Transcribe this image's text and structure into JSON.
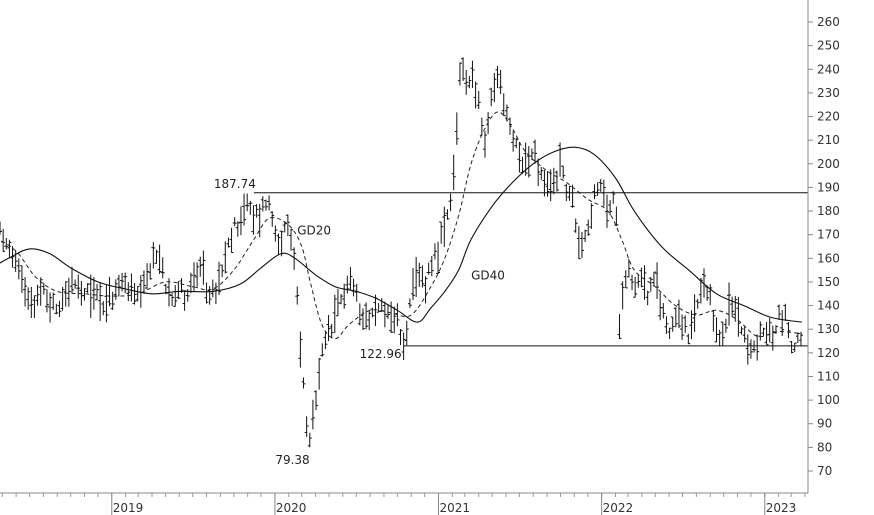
{
  "chart_data": {
    "type": "line",
    "title": "",
    "xlabel": "",
    "ylabel": "",
    "ylim": [
      60,
      265
    ],
    "y_ticks": [
      70,
      80,
      90,
      100,
      110,
      120,
      130,
      140,
      150,
      160,
      170,
      180,
      190,
      200,
      210,
      220,
      230,
      240,
      250,
      260
    ],
    "x_range": [
      "2018-03-01",
      "2023-04-01"
    ],
    "x_ticks": [
      {
        "label": "2019",
        "date": "2019-01-01"
      },
      {
        "label": "2020",
        "date": "2020-01-01"
      },
      {
        "label": "2021",
        "date": "2021-01-01"
      },
      {
        "label": "2022",
        "date": "2022-01-01"
      },
      {
        "label": "2023",
        "date": "2023-01-01"
      }
    ],
    "grid": false,
    "y_axis_side": "right",
    "price_path": [
      [
        "2018-03-01",
        158
      ],
      [
        "2018-03-15",
        168
      ],
      [
        "2018-04-01",
        172
      ],
      [
        "2018-04-15",
        176
      ],
      [
        "2018-05-01",
        170
      ],
      [
        "2018-05-15",
        165
      ],
      [
        "2018-06-01",
        158
      ],
      [
        "2018-06-15",
        150
      ],
      [
        "2018-07-01",
        145
      ],
      [
        "2018-07-15",
        142
      ],
      [
        "2018-08-01",
        146
      ],
      [
        "2018-08-15",
        141
      ],
      [
        "2018-09-01",
        139
      ],
      [
        "2018-09-15",
        144
      ],
      [
        "2018-10-01",
        150
      ],
      [
        "2018-10-15",
        147
      ],
      [
        "2018-11-01",
        143
      ],
      [
        "2018-11-15",
        146
      ],
      [
        "2018-12-01",
        145
      ],
      [
        "2018-12-15",
        141
      ],
      [
        "2019-01-01",
        143
      ],
      [
        "2019-01-15",
        147
      ],
      [
        "2019-02-01",
        150
      ],
      [
        "2019-02-15",
        145
      ],
      [
        "2019-03-01",
        142
      ],
      [
        "2019-03-15",
        146
      ],
      [
        "2019-04-01",
        159
      ],
      [
        "2019-04-15",
        161
      ],
      [
        "2019-05-01",
        150
      ],
      [
        "2019-05-15",
        146
      ],
      [
        "2019-06-01",
        148
      ],
      [
        "2019-06-15",
        144
      ],
      [
        "2019-07-01",
        150
      ],
      [
        "2019-07-15",
        155
      ],
      [
        "2019-08-01",
        148
      ],
      [
        "2019-08-15",
        144
      ],
      [
        "2019-09-01",
        150
      ],
      [
        "2019-09-15",
        162
      ],
      [
        "2019-10-01",
        172
      ],
      [
        "2019-10-15",
        178
      ],
      [
        "2019-11-01",
        182
      ],
      [
        "2019-11-15",
        177
      ],
      [
        "2019-12-01",
        180
      ],
      [
        "2019-12-15",
        186
      ],
      [
        "2020-01-01",
        172
      ],
      [
        "2020-01-15",
        168
      ],
      [
        "2020-02-01",
        172
      ],
      [
        "2020-02-15",
        158
      ],
      [
        "2020-03-01",
        115
      ],
      [
        "2020-03-10",
        95
      ],
      [
        "2020-03-18",
        79.38
      ],
      [
        "2020-04-01",
        98
      ],
      [
        "2020-04-15",
        118
      ],
      [
        "2020-05-01",
        128
      ],
      [
        "2020-05-15",
        134
      ],
      [
        "2020-06-01",
        145
      ],
      [
        "2020-06-15",
        152
      ],
      [
        "2020-07-01",
        144
      ],
      [
        "2020-07-15",
        138
      ],
      [
        "2020-08-01",
        135
      ],
      [
        "2020-08-15",
        138
      ],
      [
        "2020-09-01",
        140
      ],
      [
        "2020-09-15",
        136
      ],
      [
        "2020-10-01",
        133
      ],
      [
        "2020-10-15",
        122.96
      ],
      [
        "2020-11-01",
        142
      ],
      [
        "2020-11-15",
        152
      ],
      [
        "2020-12-01",
        150
      ],
      [
        "2020-12-15",
        158
      ],
      [
        "2021-01-01",
        165
      ],
      [
        "2021-01-15",
        172
      ],
      [
        "2021-02-01",
        185
      ],
      [
        "2021-02-10",
        210
      ],
      [
        "2021-02-20",
        248
      ],
      [
        "2021-03-01",
        232
      ],
      [
        "2021-03-15",
        240
      ],
      [
        "2021-04-01",
        225
      ],
      [
        "2021-04-15",
        205
      ],
      [
        "2021-05-01",
        230
      ],
      [
        "2021-05-15",
        238
      ],
      [
        "2021-06-01",
        222
      ],
      [
        "2021-06-15",
        210
      ],
      [
        "2021-07-01",
        206
      ],
      [
        "2021-07-15",
        200
      ],
      [
        "2021-08-01",
        205
      ],
      [
        "2021-08-15",
        196
      ],
      [
        "2021-09-01",
        188
      ],
      [
        "2021-09-15",
        192
      ],
      [
        "2021-10-01",
        200
      ],
      [
        "2021-10-15",
        190
      ],
      [
        "2021-11-01",
        180
      ],
      [
        "2021-11-15",
        165
      ],
      [
        "2021-12-01",
        174
      ],
      [
        "2021-12-15",
        185
      ],
      [
        "2022-01-01",
        190
      ],
      [
        "2022-01-15",
        180
      ],
      [
        "2022-02-01",
        186
      ],
      [
        "2022-02-10",
        135
      ],
      [
        "2022-02-20",
        150
      ],
      [
        "2022-03-01",
        158
      ],
      [
        "2022-03-15",
        148
      ],
      [
        "2022-04-01",
        153
      ],
      [
        "2022-04-15",
        145
      ],
      [
        "2022-05-01",
        150
      ],
      [
        "2022-05-15",
        140
      ],
      [
        "2022-06-01",
        128
      ],
      [
        "2022-06-15",
        138
      ],
      [
        "2022-07-01",
        132
      ],
      [
        "2022-07-15",
        125
      ],
      [
        "2022-08-01",
        138
      ],
      [
        "2022-08-15",
        148
      ],
      [
        "2022-09-01",
        140
      ],
      [
        "2022-09-15",
        130
      ],
      [
        "2022-10-01",
        127
      ],
      [
        "2022-10-15",
        140
      ],
      [
        "2022-11-01",
        137
      ],
      [
        "2022-11-15",
        130
      ],
      [
        "2022-12-01",
        118
      ],
      [
        "2022-12-15",
        125
      ],
      [
        "2023-01-01",
        130
      ],
      [
        "2023-01-15",
        126
      ],
      [
        "2023-02-01",
        135
      ],
      [
        "2023-02-15",
        138
      ],
      [
        "2023-03-01",
        122
      ],
      [
        "2023-03-15",
        126
      ],
      [
        "2023-03-25",
        124
      ]
    ],
    "series": [
      {
        "name": "GD20",
        "style": "dashed",
        "values": [
          [
            "2018-03-01",
            165
          ],
          [
            "2018-04-15",
            168
          ],
          [
            "2018-06-01",
            163
          ],
          [
            "2018-07-15",
            152
          ],
          [
            "2018-09-01",
            146
          ],
          [
            "2018-11-01",
            145
          ],
          [
            "2019-01-01",
            144
          ],
          [
            "2019-03-01",
            145
          ],
          [
            "2019-05-01",
            150
          ],
          [
            "2019-07-01",
            148
          ],
          [
            "2019-08-15",
            147
          ],
          [
            "2019-10-01",
            155
          ],
          [
            "2019-11-15",
            168
          ],
          [
            "2019-12-20",
            177
          ],
          [
            "2020-02-01",
            174
          ],
          [
            "2020-03-01",
            165
          ],
          [
            "2020-03-20",
            150
          ],
          [
            "2020-04-15",
            132
          ],
          [
            "2020-05-15",
            126
          ],
          [
            "2020-06-15",
            132
          ],
          [
            "2020-08-01",
            138
          ],
          [
            "2020-09-15",
            137
          ],
          [
            "2020-11-01",
            136
          ],
          [
            "2020-12-15",
            148
          ],
          [
            "2021-01-15",
            160
          ],
          [
            "2021-02-15",
            178
          ],
          [
            "2021-03-15",
            200
          ],
          [
            "2021-04-15",
            215
          ],
          [
            "2021-05-15",
            222
          ],
          [
            "2021-06-15",
            215
          ],
          [
            "2021-07-15",
            205
          ],
          [
            "2021-09-01",
            197
          ],
          [
            "2021-10-15",
            192
          ],
          [
            "2021-12-01",
            185
          ],
          [
            "2022-01-15",
            180
          ],
          [
            "2022-02-15",
            168
          ],
          [
            "2022-03-15",
            155
          ],
          [
            "2022-05-01",
            148
          ],
          [
            "2022-06-15",
            140
          ],
          [
            "2022-08-01",
            136
          ],
          [
            "2022-09-15",
            138
          ],
          [
            "2022-11-01",
            134
          ],
          [
            "2022-12-15",
            127
          ],
          [
            "2023-02-01",
            129
          ],
          [
            "2023-03-25",
            128
          ]
        ]
      },
      {
        "name": "GD40",
        "style": "solid",
        "values": [
          [
            "2018-03-01",
            152
          ],
          [
            "2018-05-15",
            160
          ],
          [
            "2018-07-01",
            164
          ],
          [
            "2018-08-15",
            162
          ],
          [
            "2018-10-01",
            156
          ],
          [
            "2018-12-01",
            150
          ],
          [
            "2019-02-01",
            147
          ],
          [
            "2019-04-01",
            145
          ],
          [
            "2019-06-01",
            146
          ],
          [
            "2019-08-15",
            146
          ],
          [
            "2019-10-15",
            149
          ],
          [
            "2019-12-01",
            156
          ],
          [
            "2020-01-15",
            162
          ],
          [
            "2020-02-15",
            160
          ],
          [
            "2020-04-01",
            153
          ],
          [
            "2020-05-15",
            148
          ],
          [
            "2020-07-01",
            146
          ],
          [
            "2020-08-15",
            143
          ],
          [
            "2020-10-01",
            138
          ],
          [
            "2020-11-15",
            133
          ],
          [
            "2020-12-15",
            139
          ],
          [
            "2021-01-15",
            146
          ],
          [
            "2021-02-15",
            155
          ],
          [
            "2021-03-15",
            168
          ],
          [
            "2021-05-01",
            182
          ],
          [
            "2021-06-15",
            192
          ],
          [
            "2021-08-01",
            200
          ],
          [
            "2021-09-15",
            205
          ],
          [
            "2021-11-01",
            207
          ],
          [
            "2021-12-15",
            204
          ],
          [
            "2022-02-01",
            194
          ],
          [
            "2022-03-15",
            180
          ],
          [
            "2022-05-15",
            165
          ],
          [
            "2022-07-15",
            155
          ],
          [
            "2022-09-15",
            145
          ],
          [
            "2022-11-15",
            140
          ],
          [
            "2023-01-15",
            135
          ],
          [
            "2023-03-25",
            133
          ]
        ]
      }
    ],
    "annotations": [
      {
        "label": "187.74",
        "value": 187.74,
        "date": "2019-11-15",
        "kind": "horizontal-line"
      },
      {
        "label": "122.96",
        "value": 122.96,
        "date": "2020-10-15",
        "kind": "horizontal-line"
      },
      {
        "label": "79.38",
        "value": 79.38,
        "date": "2020-03-18",
        "kind": "low-label"
      },
      {
        "label": "GD20",
        "date": "2020-02-20",
        "value": 170,
        "kind": "series-label"
      },
      {
        "label": "GD40",
        "date": "2021-03-15",
        "value": 151,
        "kind": "series-label"
      }
    ]
  }
}
